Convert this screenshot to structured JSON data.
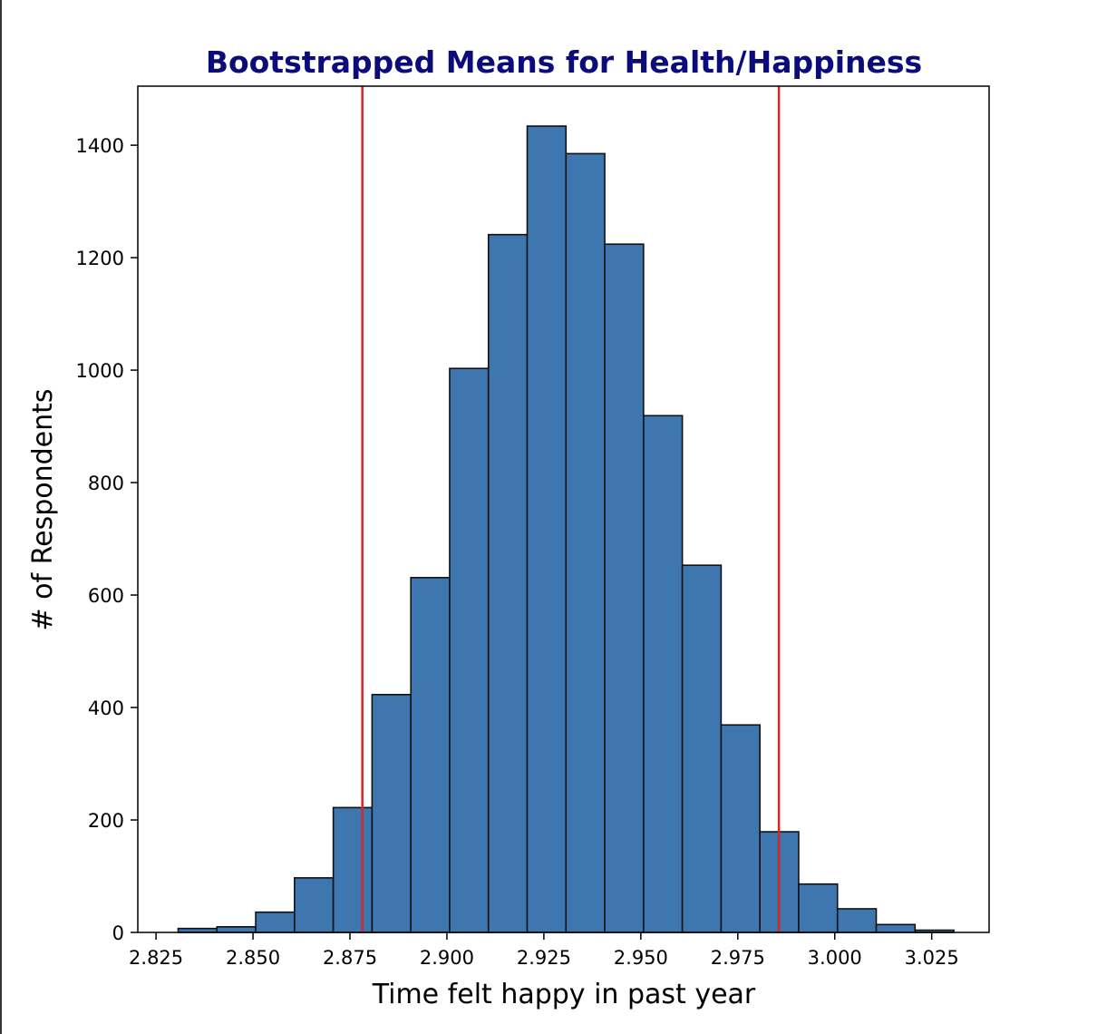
{
  "chart_data": {
    "type": "bar",
    "title": "Bootstrapped Means for Health/Happiness",
    "xlabel": "Time felt happy in past year",
    "ylabel": "# of Respondents",
    "xlim": [
      2.8203,
      3.0398
    ],
    "ylim": [
      0,
      1505
    ],
    "grid": false,
    "bins": [
      {
        "x0": 2.8307,
        "x1": 2.8407,
        "count": 7
      },
      {
        "x0": 2.8407,
        "x1": 2.8507,
        "count": 10
      },
      {
        "x0": 2.8507,
        "x1": 2.8607,
        "count": 36
      },
      {
        "x0": 2.8607,
        "x1": 2.8707,
        "count": 97
      },
      {
        "x0": 2.8707,
        "x1": 2.8807,
        "count": 222
      },
      {
        "x0": 2.8807,
        "x1": 2.8907,
        "count": 423
      },
      {
        "x0": 2.8907,
        "x1": 2.9007,
        "count": 631
      },
      {
        "x0": 2.9007,
        "x1": 2.9107,
        "count": 1003
      },
      {
        "x0": 2.9107,
        "x1": 2.9207,
        "count": 1241
      },
      {
        "x0": 2.9207,
        "x1": 2.9307,
        "count": 1434
      },
      {
        "x0": 2.9307,
        "x1": 2.9407,
        "count": 1385
      },
      {
        "x0": 2.9407,
        "x1": 2.9507,
        "count": 1224
      },
      {
        "x0": 2.9507,
        "x1": 2.9607,
        "count": 919
      },
      {
        "x0": 2.9607,
        "x1": 2.9707,
        "count": 653
      },
      {
        "x0": 2.9707,
        "x1": 2.9807,
        "count": 369
      },
      {
        "x0": 2.9807,
        "x1": 2.9907,
        "count": 179
      },
      {
        "x0": 2.9907,
        "x1": 3.0007,
        "count": 86
      },
      {
        "x0": 3.0007,
        "x1": 3.0107,
        "count": 42
      },
      {
        "x0": 3.0107,
        "x1": 3.0207,
        "count": 14
      },
      {
        "x0": 3.0207,
        "x1": 3.0307,
        "count": 4
      }
    ],
    "vlines": [
      {
        "x": 2.8782
      },
      {
        "x": 2.9856
      }
    ],
    "xticks": [
      2.825,
      2.85,
      2.875,
      2.9,
      2.925,
      2.95,
      2.975,
      3.0,
      3.025
    ],
    "xtick_labels": [
      "2.825",
      "2.850",
      "2.875",
      "2.900",
      "2.925",
      "2.950",
      "2.975",
      "3.000",
      "3.025"
    ],
    "yticks": [
      0,
      200,
      400,
      600,
      800,
      1000,
      1200,
      1400
    ],
    "ytick_labels": [
      "0",
      "200",
      "400",
      "600",
      "800",
      "1000",
      "1200",
      "1400"
    ],
    "colors": {
      "bar_fill": "#3e76b0",
      "bar_edge": "#111111",
      "vline": "#d62728",
      "title": "#0b0b7a"
    }
  }
}
